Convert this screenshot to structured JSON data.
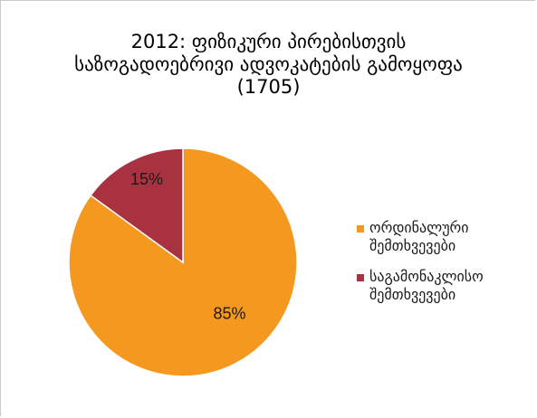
{
  "chart_data": {
    "type": "pie",
    "title_lines": [
      "2012: ფიზიკური პირებისთვის",
      "საზოგადოებრივი ადვოკატების გამოყოფა",
      "(1705)"
    ],
    "slices": [
      {
        "label": "ორდინალური\nშემთხვევები",
        "value": 85,
        "display": "85%",
        "color": "#f4981f"
      },
      {
        "label": "საგამონაკლისო\nშემთხვევები",
        "value": 15,
        "display": "15%",
        "color": "#a8323f"
      }
    ],
    "legend_position": "right"
  }
}
